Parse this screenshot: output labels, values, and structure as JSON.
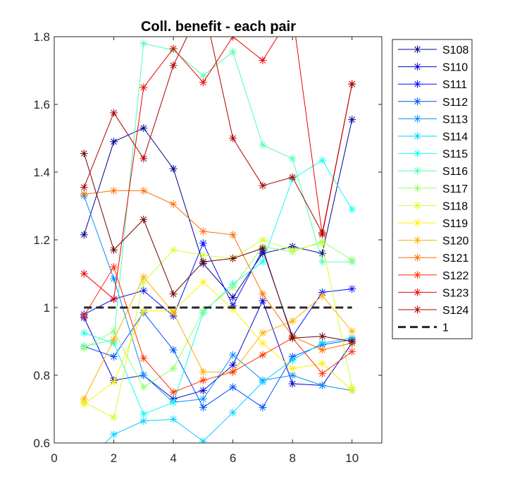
{
  "chart_data": {
    "type": "line",
    "title": "Coll. benefit - each pair",
    "xlabel": "",
    "ylabel": "",
    "xlim": [
      0,
      11
    ],
    "ylim": [
      0.6,
      1.8
    ],
    "x_ticks": [
      0,
      2,
      4,
      6,
      8,
      10
    ],
    "y_ticks": [
      0.6,
      0.8,
      1.0,
      1.2,
      1.4,
      1.6,
      1.8
    ],
    "x_tick_labels": [
      "0",
      "2",
      "4",
      "6",
      "8",
      "10"
    ],
    "y_tick_labels": [
      "0.6",
      "0.8",
      "1",
      "1.2",
      "1.4",
      "1.6",
      "1.8"
    ],
    "grid": false,
    "legend_position": "outside-right",
    "x": [
      1,
      2,
      3,
      4,
      5,
      6,
      7,
      8,
      9,
      10
    ],
    "series": [
      {
        "name": "S108",
        "color": "#00008F",
        "values": [
          1.215,
          1.49,
          1.53,
          1.41,
          1.13,
          1.03,
          1.16,
          1.18,
          1.16,
          1.555
        ]
      },
      {
        "name": "S110",
        "color": "#0000CF",
        "values": [
          0.97,
          0.785,
          0.8,
          0.73,
          0.755,
          0.83,
          1.02,
          0.775,
          0.77,
          0.895
        ]
      },
      {
        "name": "S111",
        "color": "#0010FF",
        "values": [
          0.98,
          1.025,
          1.05,
          0.975,
          1.19,
          1.005,
          1.17,
          0.915,
          1.045,
          1.055
        ]
      },
      {
        "name": "S112",
        "color": "#0050FF",
        "values": [
          0.885,
          0.855,
          0.985,
          0.875,
          0.705,
          0.765,
          0.705,
          0.855,
          0.89,
          0.905
        ]
      },
      {
        "name": "S113",
        "color": "#0090FF",
        "values": [
          1.33,
          1.085,
          0.8,
          0.72,
          0.73,
          0.86,
          0.785,
          0.8,
          0.77,
          0.755
        ]
      },
      {
        "name": "S114",
        "color": "#00D0FF",
        "values": [
          0.54,
          0.625,
          0.665,
          0.67,
          0.605,
          0.69,
          0.78,
          0.845,
          0.895,
          0.91
        ]
      },
      {
        "name": "S115",
        "color": "#10FFEF",
        "values": [
          0.925,
          0.895,
          0.685,
          0.72,
          0.985,
          1.07,
          1.135,
          1.38,
          1.435,
          1.29
        ]
      },
      {
        "name": "S116",
        "color": "#50FFAF",
        "values": [
          0.885,
          0.905,
          1.78,
          1.76,
          1.685,
          1.755,
          1.48,
          1.44,
          1.135,
          1.135
        ]
      },
      {
        "name": "S117",
        "color": "#90FF6F",
        "values": [
          0.88,
          0.93,
          0.765,
          0.82,
          0.99,
          1.06,
          1.18,
          1.165,
          1.195,
          1.14
        ]
      },
      {
        "name": "S118",
        "color": "#CFFF30",
        "values": [
          0.72,
          0.675,
          1.075,
          1.17,
          1.155,
          1.145,
          1.2,
          1.17,
          1.19,
          0.765
        ]
      },
      {
        "name": "S119",
        "color": "#FFEF00",
        "values": [
          0.715,
          0.78,
          0.99,
          0.99,
          1.075,
          0.995,
          0.895,
          0.82,
          0.835,
          0.755
        ]
      },
      {
        "name": "S120",
        "color": "#FFAF00",
        "values": [
          0.73,
          0.905,
          1.09,
          0.985,
          0.81,
          0.81,
          0.925,
          0.96,
          1.035,
          0.93
        ]
      },
      {
        "name": "S121",
        "color": "#FF6F00",
        "values": [
          1.335,
          1.345,
          1.345,
          1.305,
          1.225,
          1.215,
          1.04,
          0.915,
          0.875,
          0.895
        ]
      },
      {
        "name": "S122",
        "color": "#FF3000",
        "values": [
          0.975,
          1.12,
          0.85,
          0.75,
          0.785,
          0.81,
          0.86,
          0.91,
          0.805,
          0.87
        ]
      },
      {
        "name": "S123",
        "color": "#EF0000",
        "values": [
          1.1,
          1.025,
          1.65,
          1.765,
          1.665,
          1.8,
          1.73,
          1.87,
          1.215,
          1.66
        ]
      },
      {
        "name": "S124",
        "color": "#AF0000",
        "values": [
          1.355,
          1.575,
          1.44,
          1.715,
          1.9,
          1.5,
          1.36,
          1.385,
          1.22,
          1.66
        ]
      },
      {
        "name": "",
        "color": "#700000",
        "values": [
          1.455,
          1.17,
          1.26,
          1.04,
          1.135,
          1.145,
          1.175,
          0.91,
          0.915,
          0.9
        ]
      }
    ],
    "reference_line": {
      "name": "1",
      "color": "#262626",
      "style": "dashed",
      "x": [
        1,
        10
      ],
      "y": [
        1,
        1
      ]
    },
    "legend_entries": [
      "S108",
      "S110",
      "S111",
      "S112",
      "S113",
      "S114",
      "S115",
      "S116",
      "S117",
      "S118",
      "S119",
      "S120",
      "S121",
      "S122",
      "S123",
      "S124",
      "1"
    ]
  }
}
